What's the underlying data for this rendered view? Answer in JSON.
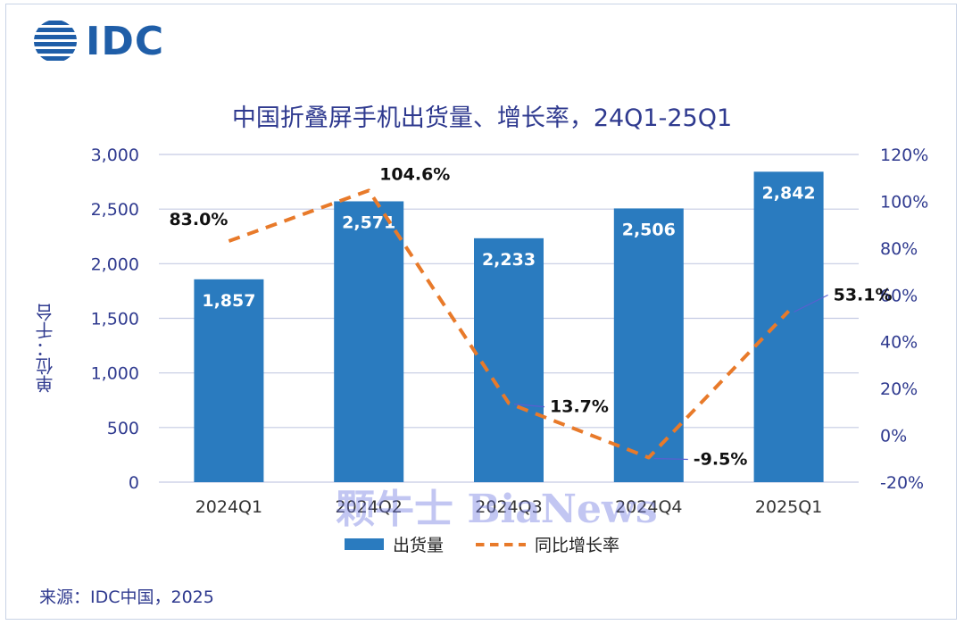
{
  "logo": {
    "text": "IDC"
  },
  "watermark": "颗牛士 BiaNews",
  "source": "来源：IDC中国，2025",
  "colors": {
    "bar": "#2a7bbf",
    "line": "#e87a2a",
    "text": "#2f3a8f",
    "grid": "#c5cbe3"
  },
  "chart_data": {
    "type": "bar",
    "title": "中国折叠屏手机出货量、增长率，24Q1-25Q1",
    "ylabel": "单位：千台",
    "xlabel": "",
    "categories": [
      "2024Q1",
      "2024Q2",
      "2024Q3",
      "2024Q4",
      "2025Q1"
    ],
    "series": [
      {
        "name": "出货量",
        "type": "bar",
        "axis": "left",
        "values": [
          1857,
          2571,
          2233,
          2506,
          2842
        ],
        "labels": [
          "1,857",
          "2,571",
          "2,233",
          "2,506",
          "2,842"
        ]
      },
      {
        "name": "同比增长率",
        "type": "line",
        "style": "dashed",
        "axis": "right",
        "values": [
          83.0,
          104.6,
          13.7,
          -9.5,
          53.1
        ],
        "labels": [
          "83.0%",
          "104.6%",
          "13.7%",
          "-9.5%",
          "53.1%"
        ]
      }
    ],
    "ylim": [
      0,
      3000
    ],
    "y_ticks": [
      0,
      500,
      1000,
      1500,
      2000,
      2500,
      3000
    ],
    "y_tick_labels": [
      "0",
      "500",
      "1,000",
      "1,500",
      "2,000",
      "2,500",
      "3,000"
    ],
    "y2lim": [
      -20,
      120
    ],
    "y2_ticks": [
      -20,
      0,
      20,
      40,
      60,
      80,
      100,
      120
    ],
    "y2_tick_labels": [
      "-20%",
      "0%",
      "20%",
      "40%",
      "60%",
      "80%",
      "100%",
      "120%"
    ],
    "grid": true,
    "legend": "bottom-center"
  }
}
